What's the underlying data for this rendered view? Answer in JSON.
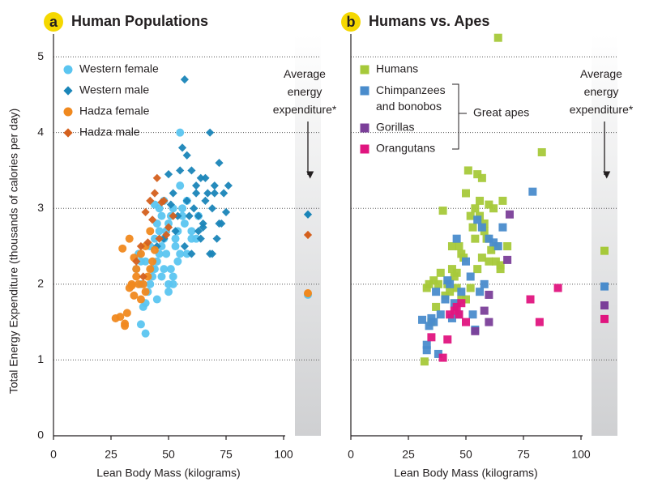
{
  "chart_data": [
    {
      "type": "scatter",
      "panel_label": "a",
      "title": "Human Populations",
      "xlabel": "Lean Body Mass (kilograms)",
      "ylabel": "Total Energy Expenditure (thousands of calories per day)",
      "annotation": "Average energy expenditure*",
      "xlim": [
        0,
        100
      ],
      "ylim": [
        0,
        5.3
      ],
      "xticks": [
        0,
        25,
        50,
        75,
        100
      ],
      "yticks": [
        0,
        1,
        2,
        3,
        4,
        5
      ],
      "ytick_labels": true,
      "grid": true,
      "series": [
        {
          "name": "Western female",
          "color": "#5bc5f0",
          "marker": "circle",
          "average": 1.86,
          "x": [
            40,
            38,
            42,
            44,
            45,
            46,
            47,
            48,
            49,
            50,
            51,
            52,
            53,
            54,
            55,
            56,
            43,
            41,
            39,
            37,
            36,
            45,
            47,
            49,
            51,
            53,
            55,
            57,
            58,
            60,
            62,
            44,
            46,
            48,
            50,
            52,
            42,
            40,
            38,
            45,
            50,
            55,
            56,
            54,
            48,
            46,
            44,
            43,
            47,
            52,
            58,
            60,
            63,
            40,
            38
          ],
          "values": [
            1.35,
            1.47,
            2.0,
            2.2,
            2.3,
            2.4,
            2.5,
            2.6,
            2.7,
            2.8,
            2.9,
            3.0,
            2.5,
            2.7,
            4.0,
            3.0,
            2.1,
            1.9,
            1.7,
            2.4,
            2.2,
            2.8,
            2.9,
            2.4,
            2.2,
            2.6,
            3.3,
            2.8,
            3.1,
            2.7,
            2.6,
            3.05,
            3.0,
            2.2,
            2.0,
            2.1,
            2.5,
            2.3,
            2.0,
            1.8,
            1.9,
            2.4,
            2.9,
            2.3,
            3.1,
            2.7,
            2.6,
            2.2,
            2.1,
            2.0,
            2.4,
            2.6,
            2.9,
            1.75,
            2.3
          ]
        },
        {
          "name": "Western male",
          "color": "#1a85b8",
          "marker": "diamond",
          "average": 2.92,
          "x": [
            57,
            56,
            58,
            60,
            62,
            64,
            66,
            68,
            70,
            72,
            74,
            76,
            55,
            59,
            61,
            63,
            65,
            67,
            69,
            71,
            73,
            75,
            50,
            52,
            54,
            48,
            53,
            57,
            60,
            63,
            66,
            69,
            72,
            62,
            58,
            64,
            70,
            68,
            45,
            51,
            65
          ],
          "values": [
            4.7,
            3.8,
            3.7,
            3.5,
            3.3,
            3.4,
            3.1,
            4.0,
            3.3,
            3.6,
            3.2,
            3.3,
            3.5,
            2.9,
            3.0,
            2.7,
            2.8,
            3.2,
            2.4,
            2.6,
            2.8,
            2.95,
            3.45,
            3.2,
            2.9,
            2.6,
            2.7,
            2.5,
            2.4,
            2.9,
            3.4,
            3.0,
            2.8,
            3.2,
            3.1,
            2.6,
            3.2,
            2.4,
            2.5,
            3.05,
            2.75
          ]
        },
        {
          "name": "Hadza female",
          "color": "#f0891f",
          "marker": "circle",
          "average": 1.88,
          "x": [
            27,
            29,
            31,
            31,
            32,
            33,
            34,
            35,
            36,
            37,
            38,
            39,
            40,
            41,
            42,
            43,
            44,
            30,
            33,
            35,
            38,
            40,
            42,
            36,
            34
          ],
          "values": [
            1.55,
            1.57,
            1.48,
            1.45,
            1.62,
            1.95,
            2.0,
            1.85,
            2.1,
            2.0,
            2.4,
            2.0,
            1.9,
            2.1,
            2.2,
            2.3,
            2.45,
            2.47,
            2.6,
            2.35,
            1.8,
            2.5,
            2.7,
            2.2,
            1.98
          ]
        },
        {
          "name": "Hadza male",
          "color": "#d4601d",
          "marker": "diamond",
          "average": 2.65,
          "x": [
            38,
            40,
            42,
            44,
            46,
            48,
            50,
            52,
            36,
            45,
            47,
            49,
            43,
            41,
            39
          ],
          "values": [
            2.5,
            2.95,
            3.1,
            3.2,
            2.6,
            3.1,
            2.75,
            2.9,
            2.3,
            3.4,
            3.08,
            2.65,
            2.85,
            2.55,
            2.1
          ]
        }
      ]
    },
    {
      "type": "scatter",
      "panel_label": "b",
      "title": "Humans vs. Apes",
      "xlabel": "Lean Body Mass (kilograms)",
      "annotation": "Average energy expenditure*",
      "group_label": "Great apes",
      "xlim": [
        0,
        100
      ],
      "ylim": [
        0,
        5.3
      ],
      "xticks": [
        0,
        25,
        50,
        75,
        100
      ],
      "yticks": [
        0,
        1,
        2,
        3,
        4,
        5
      ],
      "ytick_labels": false,
      "grid": true,
      "series": [
        {
          "name": "Humans",
          "color": "#a6c93a",
          "marker": "square",
          "average": 2.44,
          "x": [
            64,
            83,
            51,
            55,
            57,
            54,
            56,
            60,
            62,
            66,
            68,
            50,
            52,
            53,
            58,
            59,
            61,
            63,
            65,
            47,
            48,
            49,
            45,
            44,
            42,
            40,
            38,
            36,
            34,
            33,
            32,
            35,
            37,
            41,
            43,
            46,
            55,
            57,
            60,
            63,
            65,
            56,
            54,
            50,
            48,
            46,
            52,
            58,
            39,
            44
          ],
          "values": [
            5.25,
            3.74,
            3.5,
            3.45,
            3.4,
            3.0,
            3.1,
            3.05,
            3.0,
            3.1,
            2.5,
            3.2,
            2.9,
            2.75,
            2.8,
            2.6,
            2.45,
            2.3,
            2.2,
            2.5,
            2.4,
            2.35,
            2.1,
            2.2,
            2.0,
            2.97,
            2.0,
            2.05,
            2.0,
            1.95,
            0.98,
            1.5,
            1.7,
            1.85,
            1.9,
            1.95,
            2.2,
            2.35,
            2.3,
            2.5,
            2.25,
            2.9,
            2.6,
            1.8,
            1.8,
            2.15,
            1.95,
            2.7,
            2.15,
            2.5
          ]
        },
        {
          "name": "Chimpanzees and bonobos",
          "color": "#4a8ccc",
          "marker": "square",
          "average": 1.97,
          "group": true,
          "x": [
            79,
            55,
            57,
            60,
            62,
            64,
            66,
            46,
            50,
            52,
            48,
            45,
            43,
            41,
            39,
            37,
            35,
            33,
            31,
            33,
            34,
            36,
            38,
            42,
            44,
            47,
            53,
            56,
            58,
            54
          ],
          "values": [
            3.22,
            2.85,
            2.75,
            2.6,
            2.55,
            2.5,
            2.75,
            2.6,
            2.3,
            2.1,
            1.9,
            1.75,
            2.0,
            1.8,
            1.6,
            1.9,
            1.55,
            1.13,
            1.53,
            1.2,
            1.45,
            1.5,
            1.08,
            2.05,
            1.55,
            1.6,
            1.6,
            1.9,
            2.0,
            1.4
          ]
        },
        {
          "name": "Gorillas",
          "color": "#7b3f99",
          "marker": "square",
          "average": 1.72,
          "group": true,
          "x": [
            69,
            68,
            60,
            58,
            54,
            60
          ],
          "values": [
            2.92,
            2.32,
            1.86,
            1.65,
            1.38,
            1.5
          ]
        },
        {
          "name": "Orangutans",
          "color": "#e0157f",
          "marker": "square",
          "average": 1.54,
          "group": true,
          "x": [
            90,
            78,
            82,
            40,
            42,
            45,
            47,
            48,
            50,
            35,
            43,
            46
          ],
          "values": [
            1.95,
            1.8,
            1.5,
            1.03,
            1.27,
            1.65,
            1.6,
            1.75,
            1.5,
            1.3,
            1.6,
            1.7
          ]
        }
      ]
    }
  ]
}
